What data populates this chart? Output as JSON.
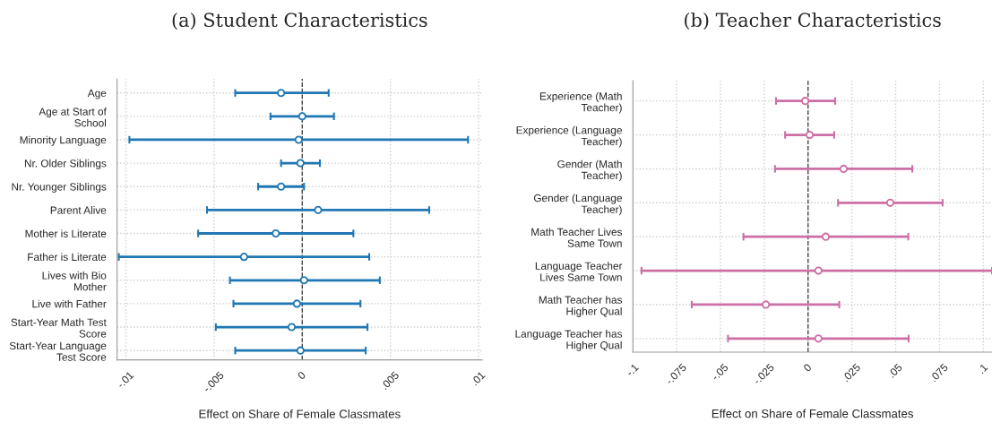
{
  "chart_data": [
    {
      "type": "scatter",
      "title": "(a) Student Characteristics",
      "xlabel": "Effect on Share of Female Classmates",
      "orientation": "horizontal",
      "categories": [
        "Age",
        "Age at Start of\nSchool",
        "Minority Language",
        "Nr. Older Siblings",
        "Nr. Younger Siblings",
        "Parent Alive",
        "Mother is Literate",
        "Father is Literate",
        "Lives with Bio\nMother",
        "Live with Father",
        "Start-Year Math Test\nScore",
        "Start-Year Language\nTest Score"
      ],
      "series": [
        {
          "color": "#1f77b4",
          "values": [
            -0.0012,
            0.0,
            -0.0002,
            -0.0001,
            -0.0012,
            0.0009,
            -0.0015,
            -0.0033,
            0.0001,
            -0.0003,
            -0.0006,
            -0.0001
          ],
          "errors": [
            [
              -0.0038,
              0.0015
            ],
            [
              -0.0018,
              0.0018
            ],
            [
              -0.0098,
              0.0094
            ],
            [
              -0.0012,
              0.001
            ],
            [
              -0.0025,
              0.0001
            ],
            [
              -0.0054,
              0.0072
            ],
            [
              -0.0059,
              0.0029
            ],
            [
              -0.0104,
              0.0038
            ],
            [
              -0.0041,
              0.0044
            ],
            [
              -0.0039,
              0.0033
            ],
            [
              -0.0049,
              0.0037
            ],
            [
              -0.0038,
              0.0036
            ]
          ]
        }
      ],
      "xlim": [
        -0.0105,
        0.0102
      ],
      "xticks": [
        {
          "value": -0.01,
          "label": "-.01"
        },
        {
          "value": -0.005,
          "label": "-.005"
        },
        0,
        {
          "value": 0.005,
          "label": ".005"
        },
        {
          "value": 0.01,
          "label": ".01"
        }
      ],
      "ref_lines": [
        {
          "axis": "x",
          "value": 0,
          "line_style": "dashed",
          "color": "#333333"
        }
      ],
      "grid": true,
      "marker": "circle"
    },
    {
      "type": "scatter",
      "title": "(b) Teacher Characteristics",
      "xlabel": "Effect on Share of Female Classmates",
      "orientation": "horizontal",
      "categories": [
        "Experience (Math\nTeacher)",
        "Experience (Language\nTeacher)",
        "Gender (Math\nTeacher)",
        "Gender (Language\nTeacher)",
        "Math Teacher Lives\nSame Town",
        "Language Teacher\nLives Same Town",
        "Math Teacher has\nHigher Qual",
        "Language Teacher has\nHigher Qual"
      ],
      "series": [
        {
          "color": "#cc6fa5",
          "values": [
            -0.0016,
            0.0009,
            0.0203,
            0.0469,
            0.0101,
            0.0059,
            -0.0241,
            0.0059
          ],
          "errors": [
            [
              -0.0183,
              0.0155
            ],
            [
              -0.0131,
              0.0149
            ],
            [
              -0.0189,
              0.0595
            ],
            [
              0.0171,
              0.0768
            ],
            [
              -0.0369,
              0.0572
            ],
            [
              -0.0951,
              0.105
            ],
            [
              -0.0664,
              0.0178
            ],
            [
              -0.0457,
              0.0574
            ]
          ]
        }
      ],
      "xlim": [
        -0.1,
        0.105
      ],
      "xticks": [
        {
          "value": -0.1,
          "label": "-.1"
        },
        {
          "value": -0.075,
          "label": "-.075"
        },
        {
          "value": -0.05,
          "label": "-.05"
        },
        {
          "value": -0.025,
          "label": "-.025"
        },
        0,
        {
          "value": 0.025,
          "label": ".025"
        },
        {
          "value": 0.05,
          "label": ".05"
        },
        {
          "value": 0.075,
          "label": ".075"
        },
        {
          "value": 0.1,
          "label": ".1"
        }
      ],
      "ref_lines": [
        {
          "axis": "x",
          "value": 0,
          "line_style": "dashed",
          "color": "#333333"
        }
      ],
      "grid": true,
      "marker": "circle"
    }
  ]
}
